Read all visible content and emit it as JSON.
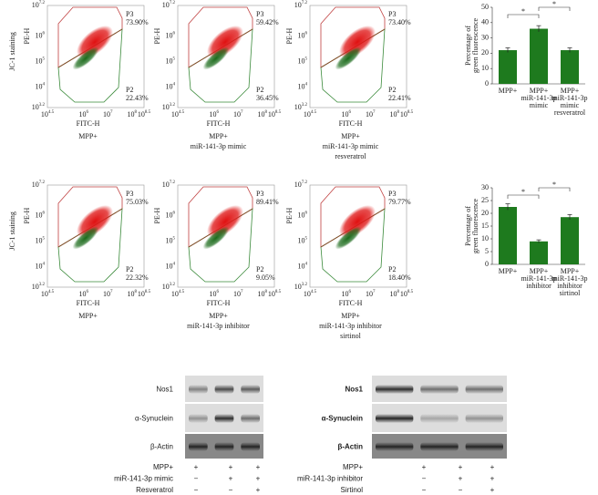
{
  "flow_axes": {
    "staining_label": "JC-1 staining",
    "ylabel": "PE-H",
    "xlabel": "FITC-H",
    "yticks": [
      {
        "base": "10",
        "exp": "7.2"
      },
      {
        "base": "10",
        "exp": "6"
      },
      {
        "base": "10",
        "exp": "5"
      },
      {
        "base": "10",
        "exp": "4"
      },
      {
        "base": "10",
        "exp": "3.2"
      }
    ],
    "xticks": [
      {
        "base": "10",
        "exp": "4.5"
      },
      {
        "base": "10",
        "exp": "6"
      },
      {
        "base": "10",
        "exp": "7"
      },
      {
        "base": "10",
        "exp": "8"
      },
      {
        "base": "10",
        "exp": "8.5"
      }
    ]
  },
  "flow_panels": [
    {
      "p3": "P3",
      "p3_value": "73.90%",
      "p2": "P2",
      "p2_value": "22.43%",
      "caption": [
        "MPP+"
      ]
    },
    {
      "p3": "P3",
      "p3_value": "59.42%",
      "p2": "P2",
      "p2_value": "36.45%",
      "caption": [
        "MPP+",
        "miR-141-3p mimic"
      ]
    },
    {
      "p3": "P3",
      "p3_value": "73.40%",
      "p2": "P2",
      "p2_value": "22.41%",
      "caption": [
        "MPP+",
        "miR-141-3p mimic",
        "resveratrol"
      ]
    },
    {
      "p3": "P3",
      "p3_value": "75.03%",
      "p2": "P2",
      "p2_value": "22.32%",
      "caption": [
        "MPP+"
      ]
    },
    {
      "p3": "P3",
      "p3_value": "89.41%",
      "p2": "P2",
      "p2_value": "9.05%",
      "caption": [
        "MPP+",
        "miR-141-3p inhibitor"
      ]
    },
    {
      "p3": "P3",
      "p3_value": "79.77%",
      "p2": "P2",
      "p2_value": "18.40%",
      "caption": [
        "MPP+",
        "miR-141-3p inhibitor",
        "sirtinol"
      ]
    }
  ],
  "chart_data": [
    {
      "type": "bar",
      "ylabel": [
        "Percentage of",
        "green fluorescence"
      ],
      "color": "#1e7a1e",
      "categories": [
        [
          "MPP+"
        ],
        [
          "MPP+",
          "miR-141-3p",
          "mimic"
        ],
        [
          "MPP+",
          "miR-141-3p",
          "mimic",
          "resveratrol"
        ]
      ],
      "values": [
        22,
        36,
        22
      ],
      "errors": [
        1.5,
        2,
        1.5
      ],
      "ylim": [
        0,
        50
      ],
      "yticks": [
        0,
        10,
        20,
        30,
        40,
        50
      ],
      "significance": [
        {
          "from": 0,
          "to": 1,
          "label": "*"
        },
        {
          "from": 1,
          "to": 2,
          "label": "*"
        }
      ]
    },
    {
      "type": "bar",
      "ylabel": [
        "Percentage of",
        "green fluorescence"
      ],
      "color": "#1e7a1e",
      "categories": [
        [
          "MPP+"
        ],
        [
          "MPP+",
          "miR-141-3p",
          "inhibitor"
        ],
        [
          "MPP+",
          "miR-141-3p",
          "inhibitor",
          "sirtinol"
        ]
      ],
      "values": [
        22.5,
        9,
        18.5
      ],
      "errors": [
        1.2,
        0.6,
        1
      ],
      "ylim": [
        0,
        30
      ],
      "yticks": [
        0,
        5,
        10,
        15,
        20,
        25,
        30
      ],
      "significance": [
        {
          "from": 0,
          "to": 1,
          "label": "*"
        },
        {
          "from": 1,
          "to": 2,
          "label": "*"
        }
      ]
    }
  ],
  "blots": [
    {
      "bands": [
        "Nos1",
        "α-Synuclein",
        "β-Actin"
      ],
      "rows": [
        {
          "label": "MPP+",
          "signs": [
            "+",
            "+",
            "+"
          ]
        },
        {
          "label": "miR-141-3p mimic",
          "signs": [
            "−",
            "+",
            "+"
          ]
        },
        {
          "label": "Resveratrol",
          "signs": [
            "−",
            "−",
            "+"
          ]
        }
      ]
    },
    {
      "bands": [
        "Nos1",
        "α-Synuclein",
        "β-Actin"
      ],
      "rows": [
        {
          "label": "MPP+",
          "signs": [
            "+",
            "+",
            "+"
          ]
        },
        {
          "label": "miR-141-3p inhibitor",
          "signs": [
            "−",
            "+",
            "+"
          ]
        },
        {
          "label": "Sirtinol",
          "signs": [
            "−",
            "−",
            "+"
          ]
        }
      ]
    }
  ]
}
